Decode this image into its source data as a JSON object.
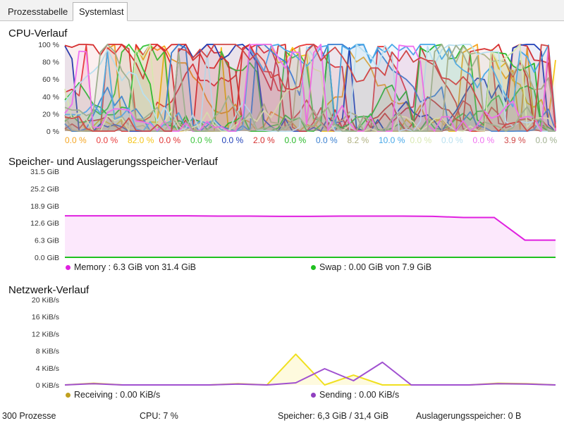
{
  "tabs": [
    {
      "label": "Prozesstabelle",
      "active": false
    },
    {
      "label": "Systemlast",
      "active": true
    }
  ],
  "cpu": {
    "title": "CPU-Verlauf",
    "y_ticks": [
      "100 %",
      "80 %",
      "60 %",
      "40 %",
      "20 %",
      "0 %"
    ],
    "cores": [
      {
        "value": "0.0 %",
        "color": "#f5a623"
      },
      {
        "value": "0.0 %",
        "color": "#e83a3a"
      },
      {
        "value": "82.0 %",
        "color": "#f5c518"
      },
      {
        "value": "0.0 %",
        "color": "#e03030"
      },
      {
        "value": "0.0 %",
        "color": "#3cc43c"
      },
      {
        "value": "0.0 %",
        "color": "#1e3fb8"
      },
      {
        "value": "2.0 %",
        "color": "#d63030"
      },
      {
        "value": "0.0 %",
        "color": "#28b828"
      },
      {
        "value": "0.0 %",
        "color": "#3a7fd0"
      },
      {
        "value": "8.2 %",
        "color": "#b0b080"
      },
      {
        "value": "10.0 %",
        "color": "#48a8e8"
      },
      {
        "value": "0.0 %",
        "color": "#d8e8b0"
      },
      {
        "value": "0.0 %",
        "color": "#b8e0f0"
      },
      {
        "value": "0.0 %",
        "color": "#f070f0"
      },
      {
        "value": "3.9 %",
        "color": "#d04848"
      },
      {
        "value": "0.0 %",
        "color": "#a0b090"
      }
    ]
  },
  "memory": {
    "title": "Speicher- und Auslagerungsspeicher-Verlauf",
    "y_ticks": [
      "31.5 GiB",
      "25.2 GiB",
      "18.9 GiB",
      "12.6 GiB",
      "6.3 GiB",
      "0.0 GiB"
    ],
    "legend_memory": "Memory : 6.3 GiB von 31.4 GiB",
    "legend_swap": "Swap : 0.00 GiB von 7.9 GiB",
    "memory_color": "#e020e0",
    "swap_color": "#20c020"
  },
  "network": {
    "title": "Netzwerk-Verlauf",
    "y_ticks": [
      "20 KiB/s",
      "16 KiB/s",
      "12 KiB/s",
      "8 KiB/s",
      "4 KiB/s",
      "0 KiB/s"
    ],
    "legend_receiving": "Receiving : 0.00 KiB/s",
    "legend_sending": "Sending : 0.00 KiB/s",
    "receiving_color": "#c0a020",
    "sending_color": "#9040c0"
  },
  "status": {
    "processes": "300 Prozesse",
    "cpu": "CPU: 7 %",
    "memory": "Speicher: 6,3 GiB / 31,4 GiB",
    "swap": "Auslagerungsspeicher: 0 B"
  },
  "chart_data": [
    {
      "type": "line",
      "title": "CPU-Verlauf",
      "ylim": [
        0,
        100
      ],
      "series_count": 16,
      "current_values": [
        0.0,
        0.0,
        82.0,
        0.0,
        0.0,
        0.0,
        2.0,
        0.0,
        0.0,
        8.2,
        10.0,
        0.0,
        0.0,
        0.0,
        3.9,
        0.0
      ]
    },
    {
      "type": "area",
      "title": "Speicher- und Auslagerungsspeicher-Verlauf",
      "ylim": [
        0,
        31.5
      ],
      "series": [
        {
          "name": "Memory",
          "values": [
            15.2,
            15.2,
            15.2,
            15.2,
            15.2,
            15.1,
            15.1,
            15.0,
            15.0,
            15.1,
            15.1,
            15.1,
            15.0,
            14.6,
            14.6,
            6.3,
            6.3
          ]
        },
        {
          "name": "Swap",
          "values": [
            0,
            0,
            0,
            0,
            0,
            0,
            0,
            0,
            0,
            0,
            0,
            0,
            0,
            0,
            0,
            0,
            0
          ]
        }
      ]
    },
    {
      "type": "line",
      "title": "Netzwerk-Verlauf",
      "ylim": [
        0,
        20
      ],
      "series": [
        {
          "name": "Receiving",
          "values": [
            0,
            0.4,
            0,
            0,
            0,
            0,
            0.3,
            0,
            7.2,
            0,
            2.3,
            0,
            0,
            0,
            0,
            0.4,
            0.3,
            0
          ]
        },
        {
          "name": "Sending",
          "values": [
            0,
            0.3,
            0,
            0,
            0,
            0,
            0.2,
            0,
            0.5,
            3.8,
            1.0,
            5.3,
            0,
            0,
            0,
            0.3,
            0.2,
            0
          ]
        }
      ]
    }
  ]
}
